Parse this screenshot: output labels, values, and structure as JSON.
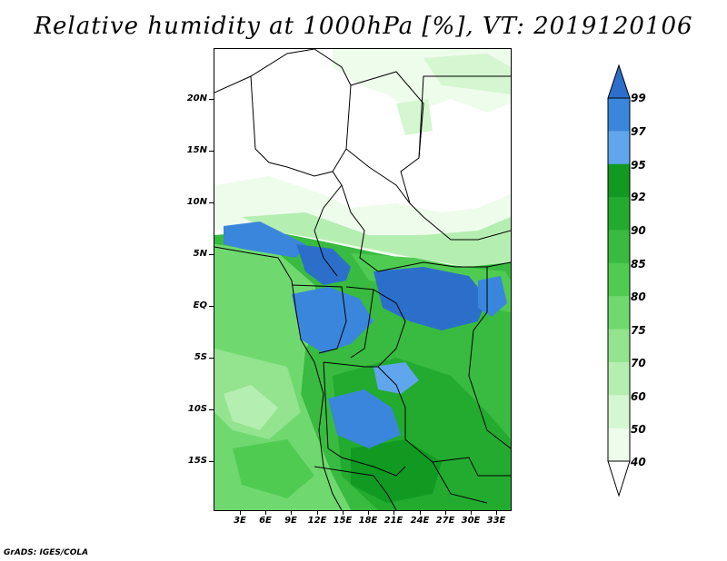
{
  "title": "Relative humidity at 1000hPa [%], VT: 2019120106",
  "credit": "GrADS: IGES/COLA",
  "lat_labels": [
    "20N",
    "15N",
    "10N",
    "5N",
    "EQ",
    "5S",
    "10S",
    "15S"
  ],
  "lon_labels": [
    "3E",
    "6E",
    "9E",
    "12E",
    "15E",
    "18E",
    "21E",
    "24E",
    "27E",
    "30E",
    "33E"
  ],
  "colorbar": {
    "levels": [
      "99",
      "97",
      "95",
      "92",
      "90",
      "85",
      "80",
      "75",
      "70",
      "60",
      "50",
      "40"
    ],
    "colors": [
      "#2c6fcb",
      "#3a86dc",
      "#5fa6ec",
      "#109a22",
      "#23ab2f",
      "#38bb40",
      "#4fcb52",
      "#6fd96f",
      "#93e38f",
      "#b5eeb1",
      "#d4f6d0",
      "#eefceb"
    ]
  }
}
